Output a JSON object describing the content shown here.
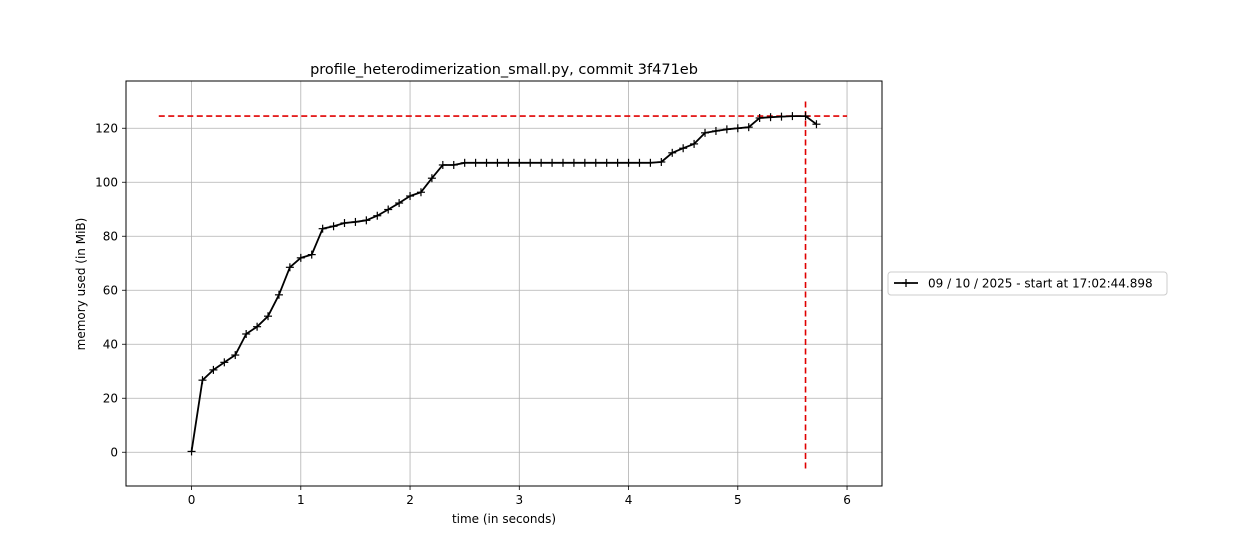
{
  "chart_data": {
    "type": "line",
    "title": "profile_heterodimerization_small.py, commit 3f471eb",
    "xlabel": "time (in seconds)",
    "ylabel": "memory used (in MiB)",
    "xlim": [
      -0.6,
      6.32
    ],
    "ylim": [
      -12.5,
      137.5
    ],
    "xticks": [
      0,
      1,
      2,
      3,
      4,
      5,
      6
    ],
    "yticks": [
      0,
      20,
      40,
      60,
      80,
      100,
      120
    ],
    "xtick_labels": [
      "0",
      "1",
      "2",
      "3",
      "4",
      "5",
      "6"
    ],
    "ytick_labels": [
      "0",
      "20",
      "40",
      "60",
      "80",
      "100",
      "120"
    ],
    "grid": true,
    "legend_position": "outside-right",
    "series": [
      {
        "name": "09 / 10 / 2025 - start at 17:02:44.898",
        "color": "#000000",
        "marker": "plus",
        "x": [
          0.0,
          0.1,
          0.2,
          0.3,
          0.4,
          0.5,
          0.6,
          0.7,
          0.8,
          0.9,
          1.0,
          1.1,
          1.2,
          1.3,
          1.4,
          1.5,
          1.6,
          1.7,
          1.8,
          1.9,
          2.0,
          2.1,
          2.2,
          2.3,
          2.4,
          2.5,
          2.6,
          2.7,
          2.8,
          2.9,
          3.0,
          3.1,
          3.2,
          3.3,
          3.4,
          3.5,
          3.6,
          3.7,
          3.8,
          3.9,
          4.0,
          4.1,
          4.2,
          4.3,
          4.4,
          4.5,
          4.6,
          4.7,
          4.8,
          4.9,
          5.0,
          5.1,
          5.2,
          5.3,
          5.4,
          5.5,
          5.62,
          5.72
        ],
        "y": [
          0.3,
          26.7,
          30.5,
          33.3,
          36.0,
          43.8,
          46.5,
          50.4,
          58.3,
          68.5,
          72.0,
          73.2,
          82.8,
          83.7,
          84.9,
          85.3,
          85.9,
          87.6,
          89.9,
          92.3,
          94.9,
          96.3,
          101.5,
          106.4,
          106.4,
          107.2,
          107.2,
          107.2,
          107.2,
          107.2,
          107.2,
          107.2,
          107.2,
          107.2,
          107.2,
          107.2,
          107.2,
          107.2,
          107.2,
          107.2,
          107.2,
          107.2,
          107.2,
          107.5,
          110.9,
          112.6,
          114.2,
          118.3,
          119.0,
          119.6,
          120.0,
          120.4,
          123.8,
          124.1,
          124.3,
          124.5,
          124.5,
          121.5
        ]
      }
    ],
    "annotations": [
      {
        "type": "hline",
        "y": 124.5,
        "x_from": -0.3,
        "x_to": 6.0,
        "color": "#e00000",
        "style": "dashed"
      },
      {
        "type": "vline",
        "x": 5.62,
        "y_from": -6.0,
        "y_to": 131.0,
        "color": "#e00000",
        "style": "dashed"
      }
    ]
  }
}
